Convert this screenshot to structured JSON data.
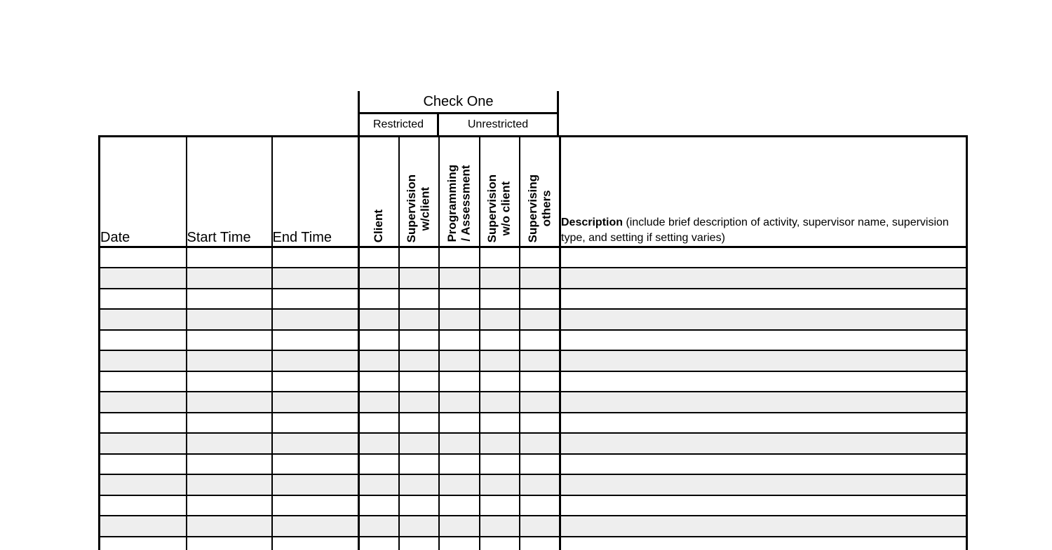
{
  "colors": {
    "border": "#000000",
    "row_alt": "#eeeeee",
    "page_background": "#ffffff",
    "text": "#000000"
  },
  "check_one": {
    "title": "Check One",
    "restricted": "Restricted",
    "unrestricted": "Unrestricted"
  },
  "table": {
    "row_count": 15,
    "columns": [
      {
        "label": "Date"
      },
      {
        "label": "Start Time"
      },
      {
        "label": "End Time"
      },
      {
        "label": "Client",
        "group": "Restricted"
      },
      {
        "label": "Supervision\nw/client",
        "group": "Restricted"
      },
      {
        "label": "Programming\n/ Assessment",
        "group": "Unrestricted"
      },
      {
        "label": "Supervision\nw/o client",
        "group": "Unrestricted"
      },
      {
        "label": "Supervising\nothers",
        "group": "Unrestricted"
      },
      {
        "label_bold": "Description",
        "label_note": "(include brief description of activity, supervisor name, supervision type, and setting if setting varies)"
      }
    ]
  }
}
